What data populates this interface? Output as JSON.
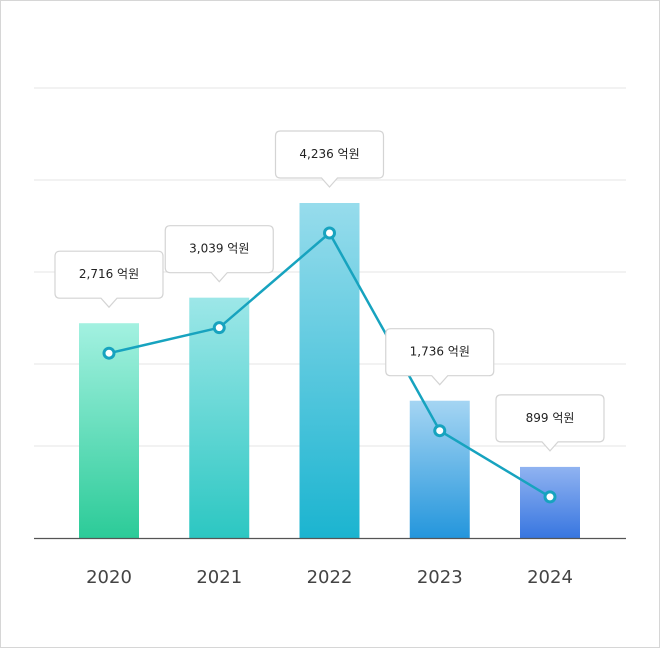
{
  "chart_data": {
    "type": "bar",
    "categories": [
      "2020",
      "2021",
      "2022",
      "2023",
      "2024"
    ],
    "values": [
      2716,
      3039,
      4236,
      1736,
      899
    ],
    "value_labels": [
      "2,716 억원",
      "3,039 억원",
      "4,236 억원",
      "1,736 억원",
      "899 억원"
    ],
    "bar_colors": [
      [
        "#a3f1e1",
        "#2ccb98"
      ],
      [
        "#9de7e8",
        "#2cc7c2"
      ],
      [
        "#97dcec",
        "#1bb4d0"
      ],
      [
        "#a5d5f3",
        "#2496dc"
      ],
      [
        "#90b3f1",
        "#3876e0"
      ]
    ],
    "line_color": "#17a3bf"
  }
}
